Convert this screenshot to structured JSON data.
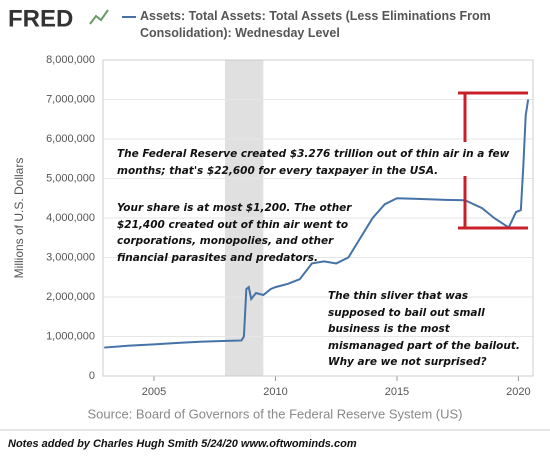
{
  "chart_data": {
    "type": "line",
    "logo": "FRED",
    "y_label": "Millions of U.S. Dollars",
    "source": "Source: Board of Governors of the Federal Reserve System (US)",
    "footer": "Notes added by Charles Hugh Smith  5/24/20  www.oftwominds.com",
    "annotations": [
      "The Federal Reserve created $3.276 trillion out of thin air in a few months; that's $22,600 for every taxpayer in the USA.",
      "Your share is at most $1,200. The other $21,400 created out of thin air went to corporations, monopolies, and other financial parasites and predators.",
      "The thin sliver that was supposed to bail out small business is the most mismanaged part of the bailout. Why are we not surprised?"
    ],
    "recession": [
      2007.92,
      2009.5
    ],
    "x": [
      2002.95,
      2004,
      2005,
      2006,
      2007,
      2008.0,
      2008.6,
      2008.7,
      2008.8,
      2008.9,
      2009.0,
      2009.2,
      2009.5,
      2009.8,
      2010.0,
      2010.5,
      2011.0,
      2011.5,
      2012.0,
      2012.5,
      2013.0,
      2013.5,
      2014.0,
      2014.5,
      2015.0,
      2016,
      2017,
      2017.8,
      2018.5,
      2019.0,
      2019.6,
      2019.9,
      2020.1,
      2020.2,
      2020.3,
      2020.4
    ],
    "series": [
      {
        "name": "Assets: Total Assets: Total Assets (Less Eliminations From Consolidation): Wednesday Level",
        "color": "#4572a7",
        "values": [
          720000,
          770000,
          800000,
          840000,
          870000,
          890000,
          900000,
          1000000,
          2200000,
          2250000,
          1950000,
          2100000,
          2050000,
          2200000,
          2250000,
          2330000,
          2450000,
          2850000,
          2900000,
          2850000,
          3000000,
          3500000,
          4000000,
          4350000,
          4500000,
          4480000,
          4460000,
          4450000,
          4250000,
          4000000,
          3760000,
          4150000,
          4200000,
          5300000,
          6600000,
          7000000
        ]
      }
    ],
    "xlim": [
      2002.9,
      2020.6
    ],
    "xticks": [
      2005,
      2010,
      2015,
      2020
    ],
    "ylim": [
      0,
      8000000
    ],
    "yticks": [
      0,
      {
        "value": 1000000,
        "label": "1,000,000"
      },
      {
        "value": 2000000,
        "label": "2,000,000"
      },
      {
        "value": 3000000,
        "label": "3,000,000"
      },
      {
        "value": 4000000,
        "label": "4,000,000"
      },
      {
        "value": 5000000,
        "label": "5,000,000"
      },
      {
        "value": 6000000,
        "label": "6,000,000"
      },
      {
        "value": 7000000,
        "label": "7,000,000"
      },
      {
        "value": 8000000,
        "label": "8,000,000"
      }
    ],
    "grid": true
  }
}
